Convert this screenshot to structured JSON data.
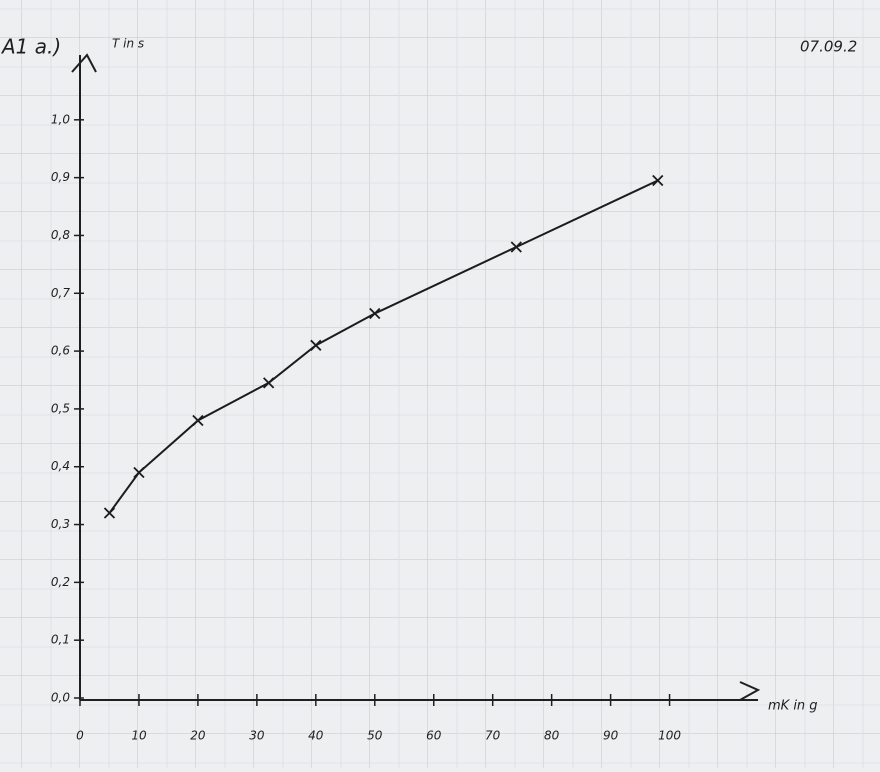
{
  "chart_data": {
    "type": "line",
    "title": "A1 a.)",
    "y_label": "T in s",
    "x_label": "mK in g",
    "annotation": "07.09.2",
    "x": [
      5,
      10,
      20,
      32,
      40,
      50,
      74,
      98
    ],
    "values": [
      0.32,
      0.39,
      0.48,
      0.545,
      0.61,
      0.665,
      0.78,
      0.895
    ],
    "color": "#1c1c1c",
    "xlim": [
      0,
      115
    ],
    "ylim": [
      0,
      1.1
    ],
    "xticks": [
      0,
      10,
      20,
      30,
      40,
      50,
      60,
      70,
      80,
      90,
      100
    ],
    "yticks": [
      {
        "value": 0,
        "label": "0,0"
      },
      {
        "value": 0.1,
        "label": "0,1"
      },
      {
        "value": 0.2,
        "label": "0,2"
      },
      {
        "value": 0.3,
        "label": "0,3"
      },
      {
        "value": 0.4,
        "label": "0,4"
      },
      {
        "value": 0.5,
        "label": "0,5"
      },
      {
        "value": 0.6,
        "label": "0,6"
      },
      {
        "value": 0.7,
        "label": "0,7"
      },
      {
        "value": 0.8,
        "label": "0,8"
      },
      {
        "value": 0.9,
        "label": "0,9"
      },
      {
        "value": 1.0,
        "label": "1,0"
      }
    ]
  }
}
